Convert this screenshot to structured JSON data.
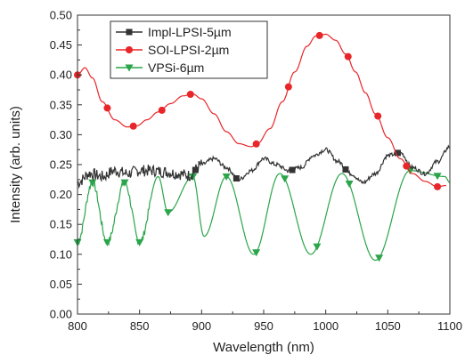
{
  "chart_data": {
    "type": "line",
    "title": "",
    "xlabel": "Wavelength (nm)",
    "ylabel": "Intensity (arb. units)",
    "xlim": [
      800,
      1100
    ],
    "ylim": [
      0.0,
      0.5
    ],
    "x_ticks": [
      "800",
      "850",
      "900",
      "950",
      "1000",
      "1050",
      "1100"
    ],
    "y_ticks": [
      "0.00",
      "0.05",
      "0.10",
      "0.15",
      "0.20",
      "0.25",
      "0.30",
      "0.35",
      "0.40",
      "0.45",
      "0.50"
    ],
    "grid": false,
    "legend_position": "top-left",
    "series": [
      {
        "name": "Impl-LPSI-5µm",
        "color": "#333333",
        "marker": "square",
        "x": [
          800,
          810,
          820,
          830,
          840,
          850,
          860,
          870,
          880,
          890,
          900,
          910,
          920,
          930,
          940,
          950,
          960,
          970,
          980,
          990,
          1000,
          1010,
          1020,
          1030,
          1040,
          1050,
          1060,
          1070,
          1080,
          1090,
          1100
        ],
        "y": [
          0.22,
          0.235,
          0.23,
          0.24,
          0.235,
          0.24,
          0.24,
          0.238,
          0.235,
          0.232,
          0.25,
          0.26,
          0.245,
          0.225,
          0.24,
          0.26,
          0.25,
          0.24,
          0.245,
          0.265,
          0.275,
          0.255,
          0.235,
          0.22,
          0.235,
          0.265,
          0.27,
          0.245,
          0.235,
          0.255,
          0.28
        ],
        "marker_x": [
          895,
          928,
          973,
          1016,
          1058
        ]
      },
      {
        "name": "SOI-LPSI-2µm",
        "color": "#e8262a",
        "marker": "circle",
        "x": [
          800,
          806,
          812,
          820,
          830,
          840,
          848,
          856,
          865,
          875,
          885,
          893,
          900,
          910,
          920,
          930,
          940,
          945,
          955,
          965,
          975,
          985,
          992,
          1000,
          1008,
          1016,
          1024,
          1032,
          1040,
          1050,
          1060,
          1070,
          1080,
          1090,
          1097
        ],
        "y": [
          0.4,
          0.412,
          0.395,
          0.355,
          0.325,
          0.313,
          0.315,
          0.325,
          0.338,
          0.352,
          0.365,
          0.368,
          0.36,
          0.335,
          0.305,
          0.285,
          0.28,
          0.285,
          0.31,
          0.355,
          0.405,
          0.448,
          0.465,
          0.468,
          0.458,
          0.435,
          0.405,
          0.37,
          0.335,
          0.295,
          0.26,
          0.235,
          0.222,
          0.213,
          0.215
        ],
        "marker_x": [
          800,
          824,
          845,
          868,
          891,
          944,
          970,
          995,
          1018,
          1042,
          1065,
          1090
        ]
      },
      {
        "name": "VPSi-6µm",
        "color": "#2aa54a",
        "marker": "triangle-down",
        "x": [
          800,
          812,
          824,
          838,
          850,
          865,
          873,
          893,
          902,
          920,
          942,
          963,
          988,
          1013,
          1040,
          1068,
          1096,
          1100
        ],
        "y": [
          0.12,
          0.22,
          0.12,
          0.22,
          0.12,
          0.23,
          0.17,
          0.23,
          0.13,
          0.23,
          0.1,
          0.235,
          0.1,
          0.235,
          0.09,
          0.24,
          0.23,
          0.22
        ],
        "marker_x": [
          800,
          812,
          824,
          838,
          850,
          873,
          893,
          920,
          944,
          967,
          993,
          1019,
          1043,
          1068,
          1090
        ]
      }
    ]
  }
}
